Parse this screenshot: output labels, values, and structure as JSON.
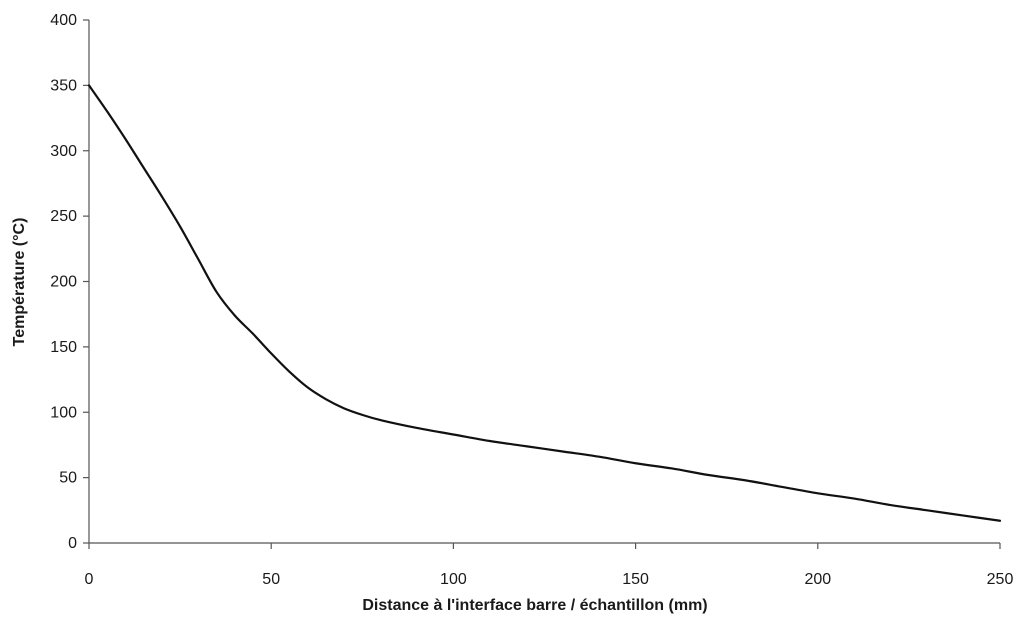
{
  "chart_data": {
    "type": "line",
    "title": "",
    "xlabel": "Distance à l'interface barre / échantillon (mm)",
    "ylabel": "Température (°C)",
    "xlim": [
      0,
      250
    ],
    "ylim": [
      0,
      400
    ],
    "x_ticks": [
      0,
      50,
      100,
      150,
      200,
      250
    ],
    "y_ticks": [
      0,
      50,
      100,
      150,
      200,
      250,
      300,
      350,
      400
    ],
    "x_tick_labels": [
      "0",
      "50",
      "100",
      "150",
      "200",
      "250"
    ],
    "y_tick_labels": [
      "0",
      "50",
      "100",
      "150",
      "200",
      "250",
      "300",
      "350",
      "400"
    ],
    "grid": false,
    "legend": "none",
    "line_color": "#111111",
    "axis_color": "#555555",
    "series": [
      {
        "x": [
          0,
          5,
          10,
          15,
          20,
          25,
          30,
          35,
          40,
          45,
          50,
          55,
          60,
          65,
          70,
          75,
          80,
          90,
          100,
          110,
          120,
          130,
          140,
          150,
          160,
          170,
          180,
          190,
          200,
          210,
          220,
          230,
          240,
          250
        ],
        "y": [
          350,
          330,
          309,
          287,
          265,
          242,
          217,
          192,
          174,
          160,
          145,
          131,
          119,
          110,
          103,
          98,
          94,
          88,
          83,
          78,
          74,
          70,
          66,
          61,
          57,
          52,
          48,
          43,
          38,
          34,
          29,
          25,
          21,
          17
        ]
      }
    ]
  }
}
